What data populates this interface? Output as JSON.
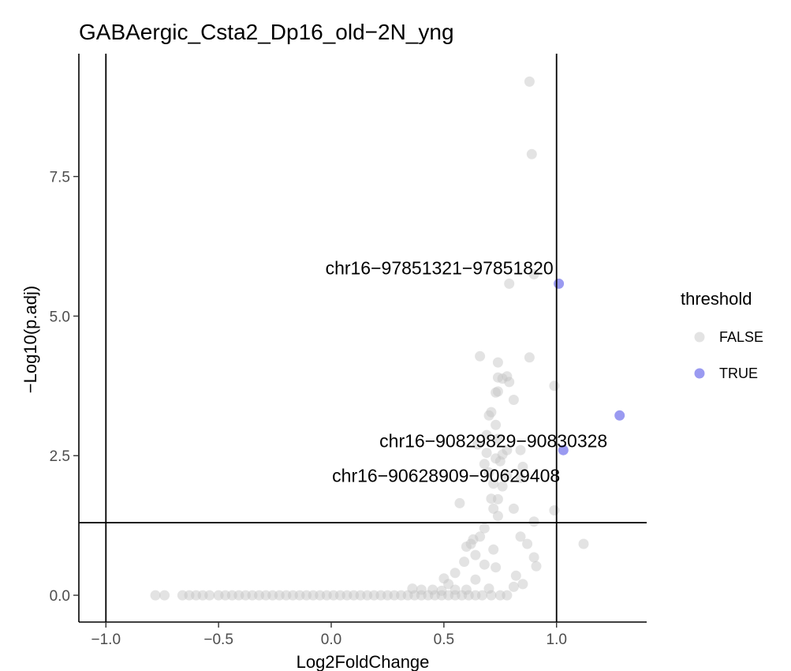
{
  "chart_data": {
    "type": "scatter",
    "title": "GABAergic_Csta2_Dp16_old−2N_yng",
    "xlabel": "Log2FoldChange",
    "ylabel": "−Log10(p.adj)",
    "xlim": [
      -1.12,
      1.4
    ],
    "ylim": [
      -0.48,
      9.7
    ],
    "x_ticks": [
      -1.0,
      -0.5,
      0.0,
      0.5,
      1.0
    ],
    "x_tick_labels": [
      "−1.0",
      "−0.5",
      "0.0",
      "0.5",
      "1.0"
    ],
    "y_ticks": [
      0.0,
      2.5,
      5.0,
      7.5
    ],
    "y_tick_labels": [
      "0.0",
      "2.5",
      "5.0",
      "7.5"
    ],
    "reference_lines": {
      "vertical": [
        -1.0,
        1.0
      ],
      "horizontal": [
        1.3
      ]
    },
    "grid": false,
    "legend": {
      "title": "threshold",
      "position": "right",
      "entries": [
        {
          "label": "FALSE",
          "color": "#c0c0c0"
        },
        {
          "label": "TRUE",
          "color": "#8f8ff0"
        }
      ]
    },
    "series": [
      {
        "name": "FALSE",
        "color": "#c0c0c0",
        "opacity": 0.45,
        "points": [
          [
            0.88,
            9.2
          ],
          [
            0.89,
            7.9
          ],
          [
            0.79,
            5.58
          ],
          [
            0.9,
            5.75
          ],
          [
            0.66,
            4.28
          ],
          [
            0.88,
            4.26
          ],
          [
            0.74,
            4.17
          ],
          [
            0.78,
            3.92
          ],
          [
            0.74,
            3.9
          ],
          [
            0.76,
            3.88
          ],
          [
            0.79,
            3.82
          ],
          [
            0.99,
            3.75
          ],
          [
            0.74,
            3.65
          ],
          [
            0.73,
            3.63
          ],
          [
            0.81,
            3.5
          ],
          [
            0.71,
            3.28
          ],
          [
            0.7,
            3.22
          ],
          [
            0.73,
            3.05
          ],
          [
            0.69,
            2.87
          ],
          [
            0.74,
            2.8
          ],
          [
            0.65,
            2.7
          ],
          [
            0.78,
            2.6
          ],
          [
            0.84,
            2.6
          ],
          [
            0.69,
            2.55
          ],
          [
            0.76,
            2.52
          ],
          [
            0.73,
            2.45
          ],
          [
            0.75,
            2.4
          ],
          [
            0.68,
            2.35
          ],
          [
            0.85,
            2.3
          ],
          [
            0.7,
            2.2
          ],
          [
            0.78,
            2.15
          ],
          [
            0.72,
            2.0
          ],
          [
            0.76,
            1.95
          ],
          [
            0.84,
            2.1
          ],
          [
            0.71,
            1.73
          ],
          [
            0.74,
            1.72
          ],
          [
            0.57,
            1.65
          ],
          [
            0.72,
            1.55
          ],
          [
            0.81,
            1.55
          ],
          [
            0.99,
            1.52
          ],
          [
            0.74,
            1.42
          ],
          [
            0.68,
            1.2
          ],
          [
            0.9,
            1.32
          ],
          [
            0.66,
            1.05
          ],
          [
            0.63,
            1.0
          ],
          [
            0.62,
            0.92
          ],
          [
            0.6,
            0.87
          ],
          [
            0.84,
            1.05
          ],
          [
            0.87,
            0.92
          ],
          [
            0.72,
            0.82
          ],
          [
            0.64,
            0.72
          ],
          [
            0.59,
            0.6
          ],
          [
            0.68,
            0.55
          ],
          [
            0.9,
            0.68
          ],
          [
            0.91,
            0.52
          ],
          [
            0.73,
            0.5
          ],
          [
            0.82,
            0.35
          ],
          [
            0.55,
            0.4
          ],
          [
            0.64,
            0.28
          ],
          [
            0.5,
            0.3
          ],
          [
            0.52,
            0.2
          ],
          [
            0.85,
            0.2
          ],
          [
            0.81,
            0.15
          ],
          [
            0.7,
            0.12
          ],
          [
            0.6,
            0.1
          ],
          [
            0.55,
            0.1
          ],
          [
            0.45,
            0.1
          ],
          [
            0.49,
            0.08
          ],
          [
            0.4,
            0.1
          ],
          [
            0.36,
            0.12
          ],
          [
            1.12,
            0.92
          ],
          [
            -0.78,
            0.0
          ],
          [
            -0.74,
            0.0
          ],
          [
            -0.66,
            0.0
          ],
          [
            -0.63,
            0.0
          ],
          [
            -0.6,
            0.0
          ],
          [
            -0.57,
            0.0
          ],
          [
            -0.54,
            0.0
          ],
          [
            -0.5,
            0.0
          ],
          [
            -0.47,
            0.0
          ],
          [
            -0.44,
            0.0
          ],
          [
            -0.41,
            0.0
          ],
          [
            -0.38,
            0.0
          ],
          [
            -0.35,
            0.0
          ],
          [
            -0.32,
            0.0
          ],
          [
            -0.29,
            0.0
          ],
          [
            -0.26,
            0.0
          ],
          [
            -0.23,
            0.0
          ],
          [
            -0.2,
            0.0
          ],
          [
            -0.17,
            0.0
          ],
          [
            -0.14,
            0.0
          ],
          [
            -0.11,
            0.0
          ],
          [
            -0.08,
            0.0
          ],
          [
            -0.05,
            0.0
          ],
          [
            -0.02,
            0.0
          ],
          [
            0.01,
            0.0
          ],
          [
            0.04,
            0.0
          ],
          [
            0.07,
            0.0
          ],
          [
            0.1,
            0.0
          ],
          [
            0.13,
            0.0
          ],
          [
            0.16,
            0.0
          ],
          [
            0.19,
            0.0
          ],
          [
            0.22,
            0.0
          ],
          [
            0.25,
            0.0
          ],
          [
            0.28,
            0.0
          ],
          [
            0.31,
            0.0
          ],
          [
            0.34,
            0.0
          ],
          [
            0.37,
            0.0
          ],
          [
            0.4,
            0.0
          ],
          [
            0.43,
            0.0
          ],
          [
            0.46,
            0.0
          ],
          [
            0.49,
            0.0
          ],
          [
            0.52,
            0.0
          ],
          [
            0.55,
            0.0
          ],
          [
            0.58,
            0.0
          ],
          [
            0.61,
            0.0
          ],
          [
            0.64,
            0.0
          ],
          [
            0.67,
            0.0
          ],
          [
            0.71,
            0.0
          ],
          [
            0.75,
            0.0
          ],
          [
            0.78,
            0.0
          ]
        ]
      },
      {
        "name": "TRUE",
        "color": "#8f8ff0",
        "opacity": 0.9,
        "points": [
          [
            1.01,
            5.58
          ],
          [
            1.28,
            3.22
          ],
          [
            1.03,
            2.6
          ]
        ]
      }
    ],
    "annotations": [
      {
        "text": "chr16−97851321−97851820",
        "x": 0.48,
        "y": 5.75
      },
      {
        "text": "chr16−90829829−90830328",
        "x": 0.72,
        "y": 2.65
      },
      {
        "text": "chr16−90628909−90629408",
        "x": 0.51,
        "y": 2.03
      }
    ]
  }
}
